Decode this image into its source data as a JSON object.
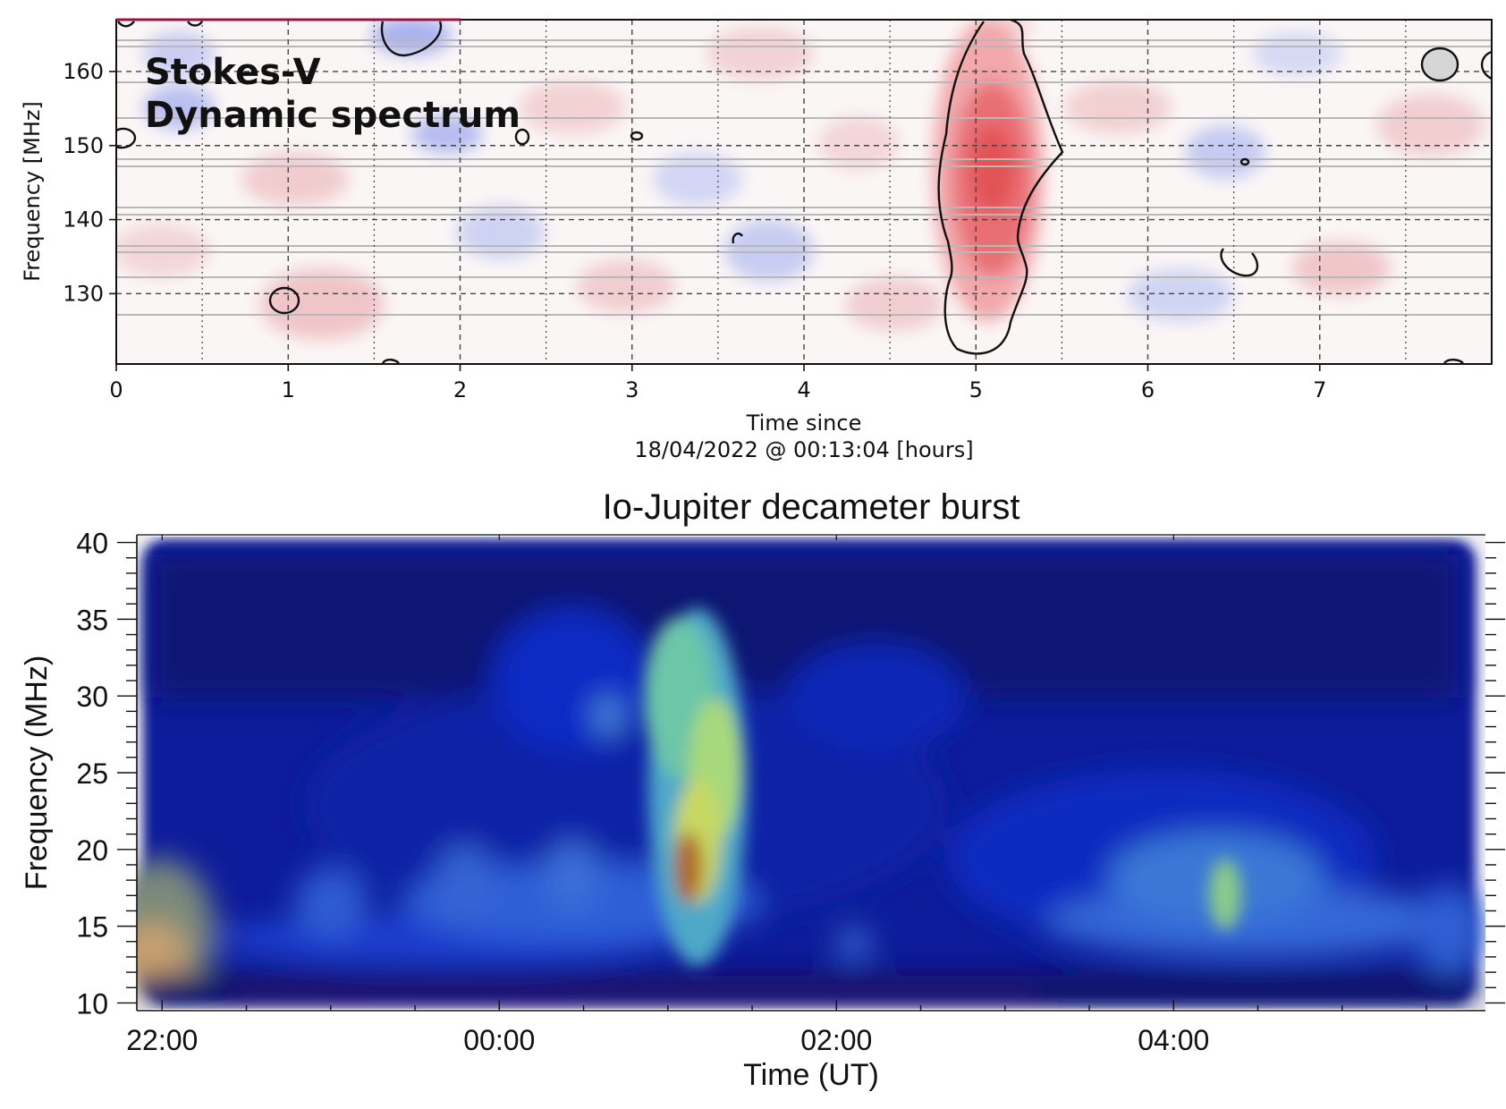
{
  "chart_data": [
    {
      "type": "heatmap",
      "annotation": [
        "Stokes-V",
        "Dynamic spectrum"
      ],
      "title": "",
      "xlabel": [
        "Time since",
        "18/04/2022 @ 00:13:04 [hours]"
      ],
      "ylabel": "Frequency [MHz]",
      "xlim": [
        0,
        8
      ],
      "ylim": [
        120.5,
        167
      ],
      "xticks": [
        0,
        1,
        2,
        3,
        4,
        5,
        6,
        7
      ],
      "yticks": [
        130,
        140,
        150,
        160
      ],
      "colormap": "diverging blue-white-red",
      "colors": {
        "positive": "#e0484f",
        "negative": "#4a5be0",
        "zero": "#ffffff"
      },
      "grid": {
        "major": "dashed",
        "minor": "dotted"
      },
      "features": [
        {
          "label": "burst",
          "time_range_hours": [
            4.8,
            5.5
          ],
          "freq_range_mhz": [
            121,
            167
          ],
          "sign": "positive",
          "peak_time": 5.1,
          "peak_freq": 145
        },
        {
          "label": "contour",
          "time": 1.0,
          "freq": 129
        },
        {
          "label": "contour",
          "time": 6.55,
          "freq": 134
        },
        {
          "label": "contour",
          "time": 7.75,
          "freq": 161.5
        }
      ]
    },
    {
      "type": "heatmap",
      "title": "Io-Jupiter decameter burst",
      "xlabel": "Time (UT)",
      "ylabel": "Frequency (MHz)",
      "xtick_labels": [
        "22:00",
        "00:00",
        "02:00",
        "04:00"
      ],
      "xtick_hours": [
        22,
        24,
        26,
        28
      ],
      "xlim_hours": [
        21.85,
        29.85
      ],
      "ylim": [
        9.5,
        40.5
      ],
      "yticks": [
        10,
        15,
        20,
        25,
        30,
        35,
        40
      ],
      "colormap": "jet",
      "colors": {
        "background": "#0a1aa8",
        "high": "#e8f040",
        "peak": "#b05a20"
      },
      "features": [
        {
          "label": "main burst",
          "time_hours": 25.0,
          "freq_range_mhz": [
            11,
            35
          ],
          "peak_freq": 18
        },
        {
          "label": "secondary burst",
          "time_hours": 28.1,
          "freq_range_mhz": [
            12,
            22
          ],
          "peak_freq": 17
        },
        {
          "label": "low-frequency emission",
          "time_hours": 21.9,
          "freq_range_mhz": [
            10,
            16
          ]
        }
      ]
    }
  ]
}
